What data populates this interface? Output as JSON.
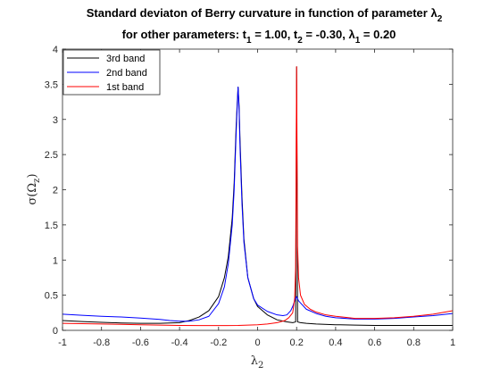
{
  "chart_data": {
    "type": "line",
    "title_line1": "Standard deviaton of Berry curvature in function of parameter λ",
    "title_line1_sub": "2",
    "title_line2": {
      "prefix": "for other parameters: t",
      "t1_sub": "1",
      "t1_val": " = 1.00, t",
      "t2_sub": "2",
      "t2_val": " = -0.30, λ",
      "l1_sub": "1",
      "l1_val": " = 0.20"
    },
    "xlabel": "λ",
    "xlabel_sub": "2",
    "ylabel": "σ(Ω",
    "ylabel_sub": "z",
    "ylabel_end": ")",
    "xlim": [
      -1,
      1
    ],
    "ylim": [
      0,
      4
    ],
    "xticks": [
      -1,
      -0.8,
      -0.6,
      -0.4,
      -0.2,
      0,
      0.2,
      0.4,
      0.6,
      0.8,
      1
    ],
    "xtick_labels": [
      "-1",
      "-0.8",
      "-0.6",
      "-0.4",
      "-0.2",
      "0",
      "0.2",
      "0.4",
      "0.6",
      "0.8",
      "1"
    ],
    "yticks": [
      0,
      0.5,
      1,
      1.5,
      2,
      2.5,
      3,
      3.5,
      4
    ],
    "ytick_labels": [
      "0",
      "0.5",
      "1",
      "1.5",
      "2",
      "2.5",
      "3",
      "3.5",
      "4"
    ],
    "legend_position": "top-left",
    "series": [
      {
        "name": "3rd band",
        "color": "#000000",
        "x": [
          -1,
          -0.9,
          -0.8,
          -0.7,
          -0.6,
          -0.5,
          -0.4,
          -0.35,
          -0.3,
          -0.25,
          -0.2,
          -0.17,
          -0.15,
          -0.13,
          -0.12,
          -0.11,
          -0.105,
          -0.1,
          -0.095,
          -0.09,
          -0.08,
          -0.07,
          -0.05,
          -0.02,
          0,
          0.05,
          0.1,
          0.15,
          0.18,
          0.195,
          0.2,
          0.205,
          0.22,
          0.25,
          0.3,
          0.4,
          0.5,
          0.6,
          0.7,
          0.8,
          0.9,
          1
        ],
        "y": [
          0.14,
          0.125,
          0.115,
          0.105,
          0.1,
          0.1,
          0.11,
          0.14,
          0.19,
          0.28,
          0.48,
          0.75,
          1.05,
          1.6,
          2.1,
          2.9,
          3.2,
          3.46,
          3.2,
          2.7,
          1.9,
          1.3,
          0.75,
          0.45,
          0.34,
          0.22,
          0.15,
          0.12,
          0.11,
          0.12,
          3.75,
          0.12,
          0.11,
          0.1,
          0.09,
          0.08,
          0.075,
          0.07,
          0.07,
          0.07,
          0.07,
          0.07
        ]
      },
      {
        "name": "2nd band",
        "color": "#0000ff",
        "x": [
          -1,
          -0.9,
          -0.8,
          -0.7,
          -0.6,
          -0.5,
          -0.45,
          -0.4,
          -0.35,
          -0.3,
          -0.25,
          -0.2,
          -0.17,
          -0.15,
          -0.13,
          -0.12,
          -0.11,
          -0.105,
          -0.1,
          -0.095,
          -0.09,
          -0.08,
          -0.07,
          -0.05,
          -0.02,
          0,
          0.05,
          0.1,
          0.13,
          0.15,
          0.17,
          0.18,
          0.19,
          0.2,
          0.21,
          0.25,
          0.3,
          0.35,
          0.4,
          0.5,
          0.6,
          0.7,
          0.8,
          0.9,
          1
        ],
        "y": [
          0.23,
          0.215,
          0.2,
          0.19,
          0.175,
          0.155,
          0.14,
          0.13,
          0.13,
          0.15,
          0.2,
          0.38,
          0.62,
          0.95,
          1.5,
          2.0,
          2.8,
          3.15,
          3.46,
          3.15,
          2.6,
          1.8,
          1.25,
          0.75,
          0.45,
          0.36,
          0.27,
          0.22,
          0.21,
          0.22,
          0.28,
          0.34,
          0.42,
          0.48,
          0.42,
          0.3,
          0.24,
          0.2,
          0.18,
          0.16,
          0.16,
          0.17,
          0.19,
          0.21,
          0.24
        ]
      },
      {
        "name": "1st band",
        "color": "#ff0000",
        "x": [
          -1,
          -0.9,
          -0.8,
          -0.7,
          -0.6,
          -0.5,
          -0.4,
          -0.3,
          -0.2,
          -0.1,
          0,
          0.05,
          0.1,
          0.14,
          0.16,
          0.18,
          0.19,
          0.195,
          0.2,
          0.205,
          0.21,
          0.22,
          0.24,
          0.27,
          0.3,
          0.35,
          0.4,
          0.5,
          0.6,
          0.7,
          0.8,
          0.9,
          1
        ],
        "y": [
          0.1,
          0.095,
          0.09,
          0.085,
          0.08,
          0.075,
          0.07,
          0.068,
          0.068,
          0.07,
          0.08,
          0.09,
          0.11,
          0.14,
          0.18,
          0.25,
          0.45,
          0.9,
          3.75,
          1.2,
          0.75,
          0.5,
          0.37,
          0.3,
          0.26,
          0.22,
          0.2,
          0.17,
          0.17,
          0.18,
          0.2,
          0.23,
          0.28
        ]
      }
    ]
  }
}
